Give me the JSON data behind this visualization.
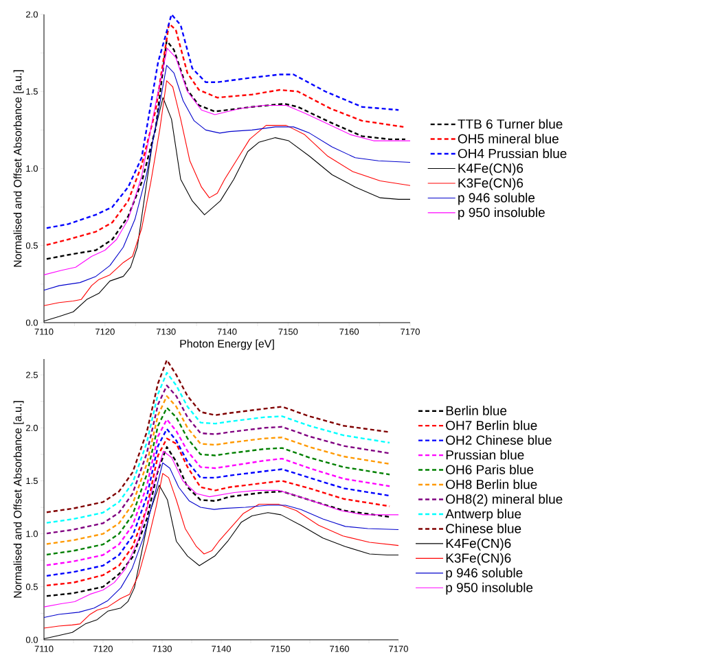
{
  "chart_data": [
    {
      "type": "line",
      "xlabel": "Photon Energy [eV]",
      "ylabel": "Normalised and Offset Absorbance [a.u.]",
      "legend": "right",
      "xlim": [
        7110,
        7170
      ],
      "ylim": [
        0,
        2.0
      ],
      "xticks": [
        7110,
        {
          "value": 7115,
          "label": null
        },
        7120,
        {
          "value": 7125,
          "label": null
        },
        7130,
        {
          "value": 7135,
          "label": null
        },
        7140,
        {
          "value": 7145,
          "label": null
        },
        7150,
        {
          "value": 7155,
          "label": null
        },
        7160,
        {
          "value": 7165,
          "label": null
        },
        7170
      ],
      "yticks": [
        {
          "value": 0,
          "label": "0.0"
        },
        {
          "value": 0.25,
          "label": null
        },
        {
          "value": 0.5,
          "label": "0.5"
        },
        {
          "value": 0.75,
          "label": null
        },
        {
          "value": 1.0,
          "label": "1.0"
        },
        {
          "value": 1.25,
          "label": null
        },
        {
          "value": 1.5,
          "label": "1.5"
        },
        {
          "value": 1.75,
          "label": null
        },
        {
          "value": 2.0,
          "label": "2.0"
        }
      ],
      "series": [
        {
          "name": "TTB 6 Turner blue",
          "color": "#000000",
          "line_style": "dashed",
          "x": [
            7110,
            7114,
            7118.5,
            7121.2,
            7123.8,
            7126,
            7128.3,
            7130.1,
            7131.3,
            7133.5,
            7135.4,
            7138,
            7144.1,
            7149.4,
            7151.6,
            7156.9,
            7162.1,
            7166.6,
            7169.2
          ],
          "values": [
            0.41,
            0.44,
            0.47,
            0.54,
            0.69,
            0.91,
            1.26,
            1.83,
            1.77,
            1.51,
            1.41,
            1.37,
            1.4,
            1.42,
            1.4,
            1.3,
            1.21,
            1.19,
            1.19
          ]
        },
        {
          "name": "OH5 mineral blue",
          "color": "#ff0000",
          "line_style": "dashed",
          "x": [
            7110,
            7114,
            7118.5,
            7121.2,
            7123.8,
            7126,
            7128.3,
            7130.5,
            7131.6,
            7133.5,
            7135.4,
            7138.4,
            7144.1,
            7148.6,
            7151.6,
            7156.9,
            7162.1,
            7168.9
          ],
          "values": [
            0.5,
            0.54,
            0.59,
            0.65,
            0.79,
            1.02,
            1.38,
            1.94,
            1.9,
            1.62,
            1.51,
            1.46,
            1.48,
            1.51,
            1.5,
            1.39,
            1.31,
            1.27
          ]
        },
        {
          "name": "OH4 Prussian blue",
          "color": "#0000ff",
          "line_style": "dashed",
          "x": [
            7110,
            7114,
            7118.5,
            7121.2,
            7123.8,
            7126,
            7128.7,
            7130.9,
            7132.4,
            7134.3,
            7136.5,
            7138.4,
            7144.1,
            7148.6,
            7150.9,
            7156.1,
            7162.1,
            7168.1
          ],
          "values": [
            0.61,
            0.64,
            0.7,
            0.75,
            0.88,
            1.07,
            1.69,
            2.0,
            1.93,
            1.65,
            1.56,
            1.56,
            1.59,
            1.61,
            1.61,
            1.5,
            1.4,
            1.38
          ]
        },
        {
          "name": "K4Fe(CN)6",
          "color": "#000000",
          "line_style": "solid",
          "x": [
            7110,
            7112.5,
            7114.8,
            7117,
            7119,
            7120.8,
            7123,
            7124.2,
            7125.3,
            7126.8,
            7127.9,
            7129.5,
            7130.9,
            7132.4,
            7134.3,
            7136.3,
            7138.9,
            7141.1,
            7143.4,
            7145.2,
            7147.9,
            7150.1,
            7153.5,
            7157.2,
            7161,
            7165.1,
            7168.1,
            7170
          ],
          "values": [
            0.01,
            0.04,
            0.07,
            0.15,
            0.19,
            0.27,
            0.3,
            0.36,
            0.49,
            0.9,
            1.2,
            1.46,
            1.32,
            0.93,
            0.79,
            0.7,
            0.79,
            0.93,
            1.11,
            1.17,
            1.2,
            1.18,
            1.08,
            0.96,
            0.88,
            0.81,
            0.8,
            0.8
          ]
        },
        {
          "name": "K3Fe(CN)6",
          "color": "#ff0000",
          "line_style": "solid",
          "x": [
            7110,
            7112.5,
            7114.8,
            7116.1,
            7117.8,
            7119,
            7120.8,
            7123,
            7124.5,
            7126,
            7127.5,
            7129,
            7130.1,
            7131.1,
            7132.4,
            7133.9,
            7135.8,
            7137.1,
            7138.4,
            7139.6,
            7141.5,
            7143.7,
            7146.4,
            7149.7,
            7152.7,
            7156.5,
            7160.6,
            7165.1,
            7170
          ],
          "values": [
            0.11,
            0.13,
            0.14,
            0.15,
            0.24,
            0.28,
            0.31,
            0.39,
            0.43,
            0.61,
            0.91,
            1.26,
            1.57,
            1.53,
            1.32,
            1.05,
            0.88,
            0.81,
            0.84,
            0.93,
            1.05,
            1.19,
            1.28,
            1.28,
            1.22,
            1.08,
            0.98,
            0.92,
            0.89
          ]
        },
        {
          "name": "p 946 soluble",
          "color": "#0000cc",
          "line_style": "solid",
          "x": [
            7110,
            7112.5,
            7115.9,
            7118.5,
            7120.8,
            7123,
            7124.9,
            7126.8,
            7128.7,
            7130.1,
            7131.3,
            7132.8,
            7134.6,
            7136.5,
            7138.8,
            7140.4,
            7144.1,
            7147.9,
            7150.9,
            7153.5,
            7157.2,
            7161,
            7164.8,
            7170
          ],
          "values": [
            0.21,
            0.24,
            0.26,
            0.3,
            0.37,
            0.49,
            0.67,
            0.96,
            1.36,
            1.67,
            1.62,
            1.44,
            1.31,
            1.25,
            1.23,
            1.24,
            1.25,
            1.27,
            1.27,
            1.23,
            1.14,
            1.07,
            1.05,
            1.04
          ]
        },
        {
          "name": "p 950 insoluble",
          "color": "#ff00ff",
          "line_style": "solid",
          "x": [
            7110,
            7112.9,
            7115.2,
            7117.8,
            7120,
            7121.9,
            7123.8,
            7126,
            7128.3,
            7130.2,
            7131.6,
            7133.5,
            7135.8,
            7138,
            7142.2,
            7146,
            7149.7,
            7152.7,
            7156.5,
            7160.2,
            7164,
            7170
          ],
          "values": [
            0.31,
            0.34,
            0.36,
            0.43,
            0.47,
            0.54,
            0.67,
            0.95,
            1.42,
            1.78,
            1.72,
            1.5,
            1.38,
            1.35,
            1.39,
            1.41,
            1.41,
            1.36,
            1.29,
            1.22,
            1.18,
            1.18
          ]
        }
      ]
    },
    {
      "type": "line",
      "ylabel": "Normalised and Offset Absorbance [a.u.]",
      "legend": "right",
      "xlim": [
        7110,
        7170
      ],
      "ylim": [
        0,
        2.65
      ],
      "xticks": [
        7110,
        {
          "value": 7115,
          "label": null
        },
        7120,
        {
          "value": 7125,
          "label": null
        },
        7130,
        {
          "value": 7135,
          "label": null
        },
        7140,
        {
          "value": 7145,
          "label": null
        },
        7150,
        {
          "value": 7155,
          "label": null
        },
        7160,
        {
          "value": 7165,
          "label": null
        },
        7170
      ],
      "yticks": [
        {
          "value": 0,
          "label": "0.0"
        },
        {
          "value": 0.25,
          "label": null
        },
        {
          "value": 0.5,
          "label": "0.5"
        },
        {
          "value": 0.75,
          "label": null
        },
        {
          "value": 1.0,
          "label": "1.0"
        },
        {
          "value": 1.25,
          "label": null
        },
        {
          "value": 1.5,
          "label": "1.5"
        },
        {
          "value": 1.75,
          "label": null
        },
        {
          "value": 2.0,
          "label": "2.0"
        },
        {
          "value": 2.25,
          "label": null
        },
        {
          "value": 2.5,
          "label": "2.5"
        }
      ],
      "x": [
        7110,
        7115,
        7120,
        7122.7,
        7125,
        7127.4,
        7129.3,
        7130.8,
        7132.4,
        7134.3,
        7136.5,
        7139,
        7141.4,
        7147.2,
        7150.3,
        7154.9,
        7160.7,
        7168.5
      ],
      "series": [
        {
          "name": "Berlin blue",
          "color": "#000000",
          "line_style": "dashed",
          "values": [
            0.41,
            0.44,
            0.5,
            0.62,
            0.78,
            1.14,
            1.6,
            1.82,
            1.68,
            1.44,
            1.32,
            1.31,
            1.35,
            1.39,
            1.4,
            1.32,
            1.22,
            1.16
          ]
        },
        {
          "name": "OH7 Berlin blue",
          "color": "#ff0000",
          "line_style": "dashed",
          "values": [
            0.51,
            0.54,
            0.61,
            0.7,
            0.88,
            1.24,
            1.74,
            1.9,
            1.85,
            1.63,
            1.44,
            1.41,
            1.44,
            1.48,
            1.5,
            1.43,
            1.33,
            1.26
          ]
        },
        {
          "name": "OH2 Chinese blue",
          "color": "#0000ff",
          "line_style": "dashed",
          "values": [
            0.6,
            0.64,
            0.7,
            0.8,
            0.98,
            1.35,
            1.83,
            1.99,
            1.88,
            1.68,
            1.53,
            1.53,
            1.55,
            1.59,
            1.61,
            1.53,
            1.43,
            1.36
          ]
        },
        {
          "name": "Prussian blue",
          "color": "#ff00ff",
          "line_style": "dashed",
          "values": [
            0.7,
            0.74,
            0.8,
            0.9,
            1.08,
            1.45,
            1.92,
            2.08,
            1.97,
            1.78,
            1.63,
            1.62,
            1.64,
            1.69,
            1.71,
            1.62,
            1.52,
            1.45
          ]
        },
        {
          "name": "OH6 Paris blue",
          "color": "#008000",
          "line_style": "dashed",
          "values": [
            0.8,
            0.84,
            0.9,
            1.0,
            1.18,
            1.56,
            2.02,
            2.19,
            2.1,
            1.9,
            1.75,
            1.74,
            1.76,
            1.8,
            1.81,
            1.72,
            1.63,
            1.56
          ]
        },
        {
          "name": "OH8 Berlin blue",
          "color": "#ff9900",
          "line_style": "dashed",
          "values": [
            0.9,
            0.94,
            1.0,
            1.1,
            1.28,
            1.66,
            2.12,
            2.3,
            2.2,
            2.0,
            1.85,
            1.84,
            1.86,
            1.9,
            1.91,
            1.82,
            1.73,
            1.66
          ]
        },
        {
          "name": "OH8(2) mineral blue",
          "color": "#800080",
          "line_style": "dashed",
          "values": [
            1.0,
            1.04,
            1.1,
            1.2,
            1.38,
            1.76,
            2.22,
            2.4,
            2.3,
            2.1,
            1.95,
            1.94,
            1.96,
            2.0,
            2.01,
            1.92,
            1.83,
            1.76
          ]
        },
        {
          "name": "Antwerp blue",
          "color": "#00ffff",
          "line_style": "dashed",
          "values": [
            1.1,
            1.14,
            1.2,
            1.3,
            1.48,
            1.86,
            2.32,
            2.52,
            2.4,
            2.2,
            2.05,
            2.04,
            2.06,
            2.1,
            2.11,
            2.02,
            1.93,
            1.86
          ]
        },
        {
          "name": "Chinese blue",
          "color": "#800000",
          "line_style": "dashed",
          "values": [
            1.2,
            1.24,
            1.3,
            1.4,
            1.58,
            1.96,
            2.42,
            2.64,
            2.5,
            2.3,
            2.15,
            2.12,
            2.14,
            2.18,
            2.2,
            2.11,
            2.02,
            1.96
          ]
        },
        {
          "name": "K4Fe(CN)6",
          "color": "#000000",
          "line_style": "solid",
          "x": [
            7110,
            7112.5,
            7114.8,
            7117,
            7119,
            7120.8,
            7123,
            7124.2,
            7125.3,
            7126.8,
            7127.9,
            7129.5,
            7130.9,
            7132.4,
            7134.3,
            7136.3,
            7138.9,
            7141.1,
            7143.4,
            7145.2,
            7147.9,
            7150.1,
            7153.5,
            7157.2,
            7161,
            7165.1,
            7168.1,
            7170
          ],
          "values": [
            0.01,
            0.04,
            0.07,
            0.15,
            0.19,
            0.27,
            0.3,
            0.36,
            0.49,
            0.9,
            1.2,
            1.46,
            1.32,
            0.93,
            0.79,
            0.7,
            0.79,
            0.93,
            1.11,
            1.17,
            1.2,
            1.18,
            1.08,
            0.96,
            0.88,
            0.81,
            0.8,
            0.8
          ]
        },
        {
          "name": "K3Fe(CN)6",
          "color": "#ff0000",
          "line_style": "solid",
          "x": [
            7110,
            7112.5,
            7114.8,
            7116.1,
            7117.8,
            7119,
            7120.8,
            7123,
            7124.5,
            7126,
            7127.5,
            7129,
            7130.1,
            7131.1,
            7132.4,
            7133.9,
            7135.8,
            7137.1,
            7138.4,
            7139.6,
            7141.5,
            7143.7,
            7146.4,
            7149.7,
            7152.7,
            7156.5,
            7160.6,
            7165.1,
            7170
          ],
          "values": [
            0.11,
            0.13,
            0.14,
            0.15,
            0.24,
            0.28,
            0.31,
            0.39,
            0.43,
            0.61,
            0.91,
            1.26,
            1.57,
            1.53,
            1.32,
            1.05,
            0.88,
            0.81,
            0.84,
            0.93,
            1.05,
            1.19,
            1.28,
            1.28,
            1.22,
            1.08,
            0.98,
            0.92,
            0.89
          ]
        },
        {
          "name": "p 946 soluble",
          "color": "#0000cc",
          "line_style": "solid",
          "x": [
            7110,
            7112.5,
            7115.9,
            7118.5,
            7120.8,
            7123,
            7124.9,
            7126.8,
            7128.7,
            7130.1,
            7131.3,
            7132.8,
            7134.6,
            7136.5,
            7138.8,
            7140.4,
            7144.1,
            7147.9,
            7150.9,
            7153.5,
            7157.2,
            7161,
            7164.8,
            7170
          ],
          "values": [
            0.21,
            0.24,
            0.26,
            0.3,
            0.37,
            0.49,
            0.67,
            0.96,
            1.36,
            1.67,
            1.62,
            1.44,
            1.31,
            1.25,
            1.23,
            1.24,
            1.25,
            1.27,
            1.27,
            1.23,
            1.14,
            1.07,
            1.05,
            1.04
          ]
        },
        {
          "name": "p 950 insoluble",
          "color": "#ff00ff",
          "line_style": "solid",
          "x": [
            7110,
            7112.9,
            7115.2,
            7117.8,
            7120,
            7121.9,
            7123.8,
            7126,
            7128.3,
            7130.2,
            7131.6,
            7133.5,
            7135.8,
            7138,
            7142.2,
            7146,
            7149.7,
            7152.7,
            7156.5,
            7160.2,
            7164,
            7170
          ],
          "values": [
            0.31,
            0.34,
            0.36,
            0.43,
            0.47,
            0.54,
            0.67,
            0.95,
            1.42,
            1.78,
            1.72,
            1.5,
            1.38,
            1.35,
            1.39,
            1.41,
            1.41,
            1.36,
            1.29,
            1.22,
            1.18,
            1.18
          ]
        }
      ]
    }
  ]
}
